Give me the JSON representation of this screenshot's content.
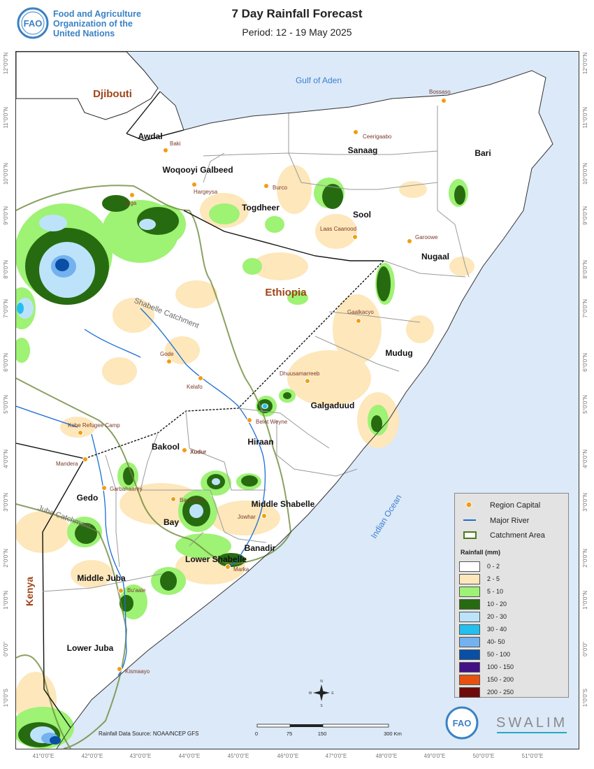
{
  "header": {
    "title": "7 Day Rainfall Forecast",
    "period": "Period: 12 - 19 May 2025",
    "org_line1": "Food and Agriculture",
    "org_line2": "Organization of the",
    "org_line3": "United Nations",
    "fao_logo_text": "FAO"
  },
  "map": {
    "water_labels": {
      "gulf": "Gulf of Aden",
      "ocean": "Indian Ocean"
    },
    "countries": {
      "djibouti": "Djibouti",
      "ethiopia": "Ethiopia",
      "kenya": "Kenya"
    },
    "catchments": {
      "shabelle": "Shabelle Catchment",
      "juba": "Juba Catchment"
    },
    "regions": {
      "awdal": "Awdal",
      "woqooyi": "Woqooyi Galbeed",
      "togdheer": "Togdheer",
      "sanaag": "Sanaag",
      "bari": "Bari",
      "sool": "Sool",
      "nugaal": "Nugaal",
      "mudug": "Mudug",
      "galgaduud": "Galgaduud",
      "hiraan": "Hiraan",
      "bakool": "Bakool",
      "gedo": "Gedo",
      "bay": "Bay",
      "middle_shabelle": "Middle Shabelle",
      "banadir": "Banadir",
      "lower_shabelle": "Lower Shabelle",
      "middle_juba": "Middle Juba",
      "lower_juba": "Lower Juba"
    },
    "towns": {
      "baki": "Baki",
      "hargeysa": "Hargeysa",
      "burco": "Burco",
      "ceerigaabo": "Ceerigaabo",
      "bossaso": "Bossaso",
      "laas_caanood": "Laas Caanood",
      "garoowe": "Garoowe",
      "gaalkacyo": "Gaalkacyo",
      "dhuusamarreeb": "Dhuusamarreeb",
      "belet_weyne": "Belet Weyne",
      "jijiga": "Jijiga",
      "gode": "Gode",
      "kelafo": "Kelafo",
      "kobe": "Kobe Refugee Camp",
      "mandera": "Mandera",
      "xudur": "Xudur",
      "garbahaarey": "Garbahaarey",
      "baydhabo": "Baydhabo",
      "jowhar": "Jowhar",
      "marka": "Marka",
      "buaale": "Bu'aale",
      "kismaayo": "Kismaayo"
    },
    "lat_labels": [
      "12°0'0\"N",
      "11°0'0\"N",
      "10°0'0\"N",
      "9°0'0\"N",
      "8°0'0\"N",
      "7°0'0\"N",
      "6°0'0\"N",
      "5°0'0\"N",
      "4°0'0\"N",
      "3°0'0\"N",
      "2°0'0\"N",
      "1°0'0\"N",
      "0°0'0\"",
      "1°0'0\"S"
    ],
    "lon_labels": [
      "41°0'0\"E",
      "42°0'0\"E",
      "43°0'0\"E",
      "44°0'0\"E",
      "45°0'0\"E",
      "46°0'0\"E",
      "47°0'0\"E",
      "48°0'0\"E",
      "49°0'0\"E",
      "50°0'0\"E",
      "51°0'0\"E"
    ],
    "compass": {
      "n": "N",
      "s": "S",
      "e": "E",
      "w": "W"
    }
  },
  "legend": {
    "region_capital": "Region Capital",
    "major_river": "Major River",
    "catchment_area": "Catchment Area",
    "rainfall_title": "Rainfall (mm)",
    "classes": [
      {
        "label": "0 - 2",
        "color": "#ffffff"
      },
      {
        "label": "2 - 5",
        "color": "#fde7bb"
      },
      {
        "label": "5 - 10",
        "color": "#9ef274"
      },
      {
        "label": "10 - 20",
        "color": "#276b10"
      },
      {
        "label": "20 - 30",
        "color": "#bde3fb"
      },
      {
        "label": "30 - 40",
        "color": "#23c0ef"
      },
      {
        "label": "40- 50",
        "color": "#73b2ef"
      },
      {
        "label": "50 - 100",
        "color": "#0a4fa6"
      },
      {
        "label": "100 - 150",
        "color": "#421185"
      },
      {
        "label": "150 - 200",
        "color": "#e8500f"
      },
      {
        "label": "200 - 250",
        "color": "#6f0a0a"
      }
    ]
  },
  "footer": {
    "source": "Rainfall Data Source: NOAA/NCEP GFS",
    "scale_labels": [
      "0",
      "75",
      "150",
      "300 Km"
    ],
    "swalim": "SWALIM"
  }
}
